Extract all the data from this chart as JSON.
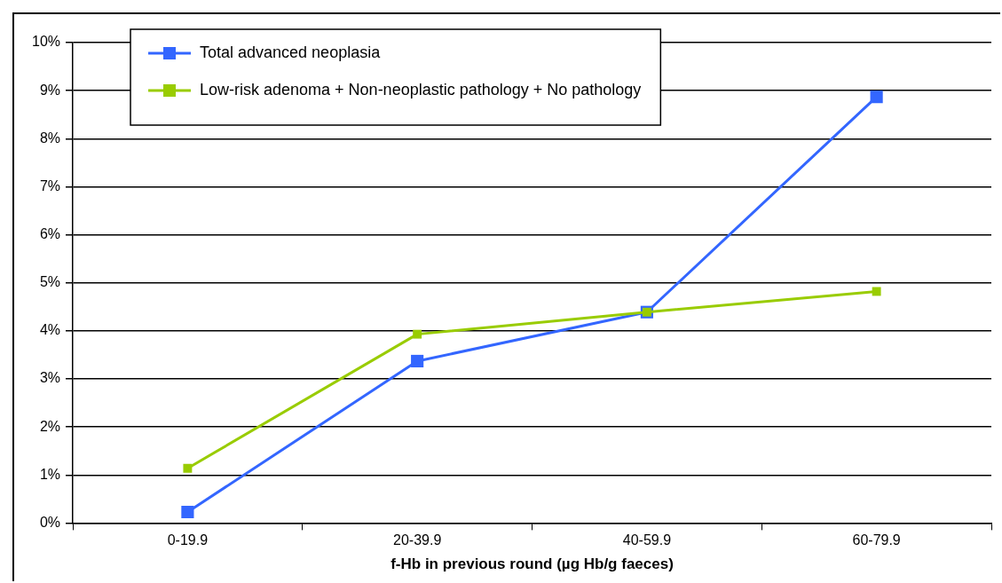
{
  "chart_data": {
    "type": "line",
    "xlabel": "f-Hb in previous round (µg Hb/g faeces)",
    "categories": [
      "0-19.9",
      "20-39.9",
      "40-59.9",
      "60-79.9"
    ],
    "series": [
      {
        "name": "Total advanced neoplasia",
        "color": "#3366ff",
        "values": [
          0.23,
          3.37,
          4.39,
          8.87
        ]
      },
      {
        "name": "Low-risk adenoma + Non-neoplastic pathology + No pathology",
        "color": "#99cc00",
        "values": [
          1.14,
          3.93,
          4.39,
          4.82
        ]
      }
    ],
    "ylim": [
      0,
      10
    ],
    "yticks": [
      {
        "value": 0,
        "label": "0%"
      },
      {
        "value": 1,
        "label": "1%"
      },
      {
        "value": 2,
        "label": "2%"
      },
      {
        "value": 3,
        "label": "3%"
      },
      {
        "value": 4,
        "label": "4%"
      },
      {
        "value": 5,
        "label": "5%"
      },
      {
        "value": 6,
        "label": "6%"
      },
      {
        "value": 7,
        "label": "7%"
      },
      {
        "value": 8,
        "label": "8%"
      },
      {
        "value": 9,
        "label": "9%"
      },
      {
        "value": 10,
        "label": "10%"
      }
    ],
    "grid": "y",
    "legend": "top left",
    "marker": "square",
    "line_style": "solid"
  }
}
